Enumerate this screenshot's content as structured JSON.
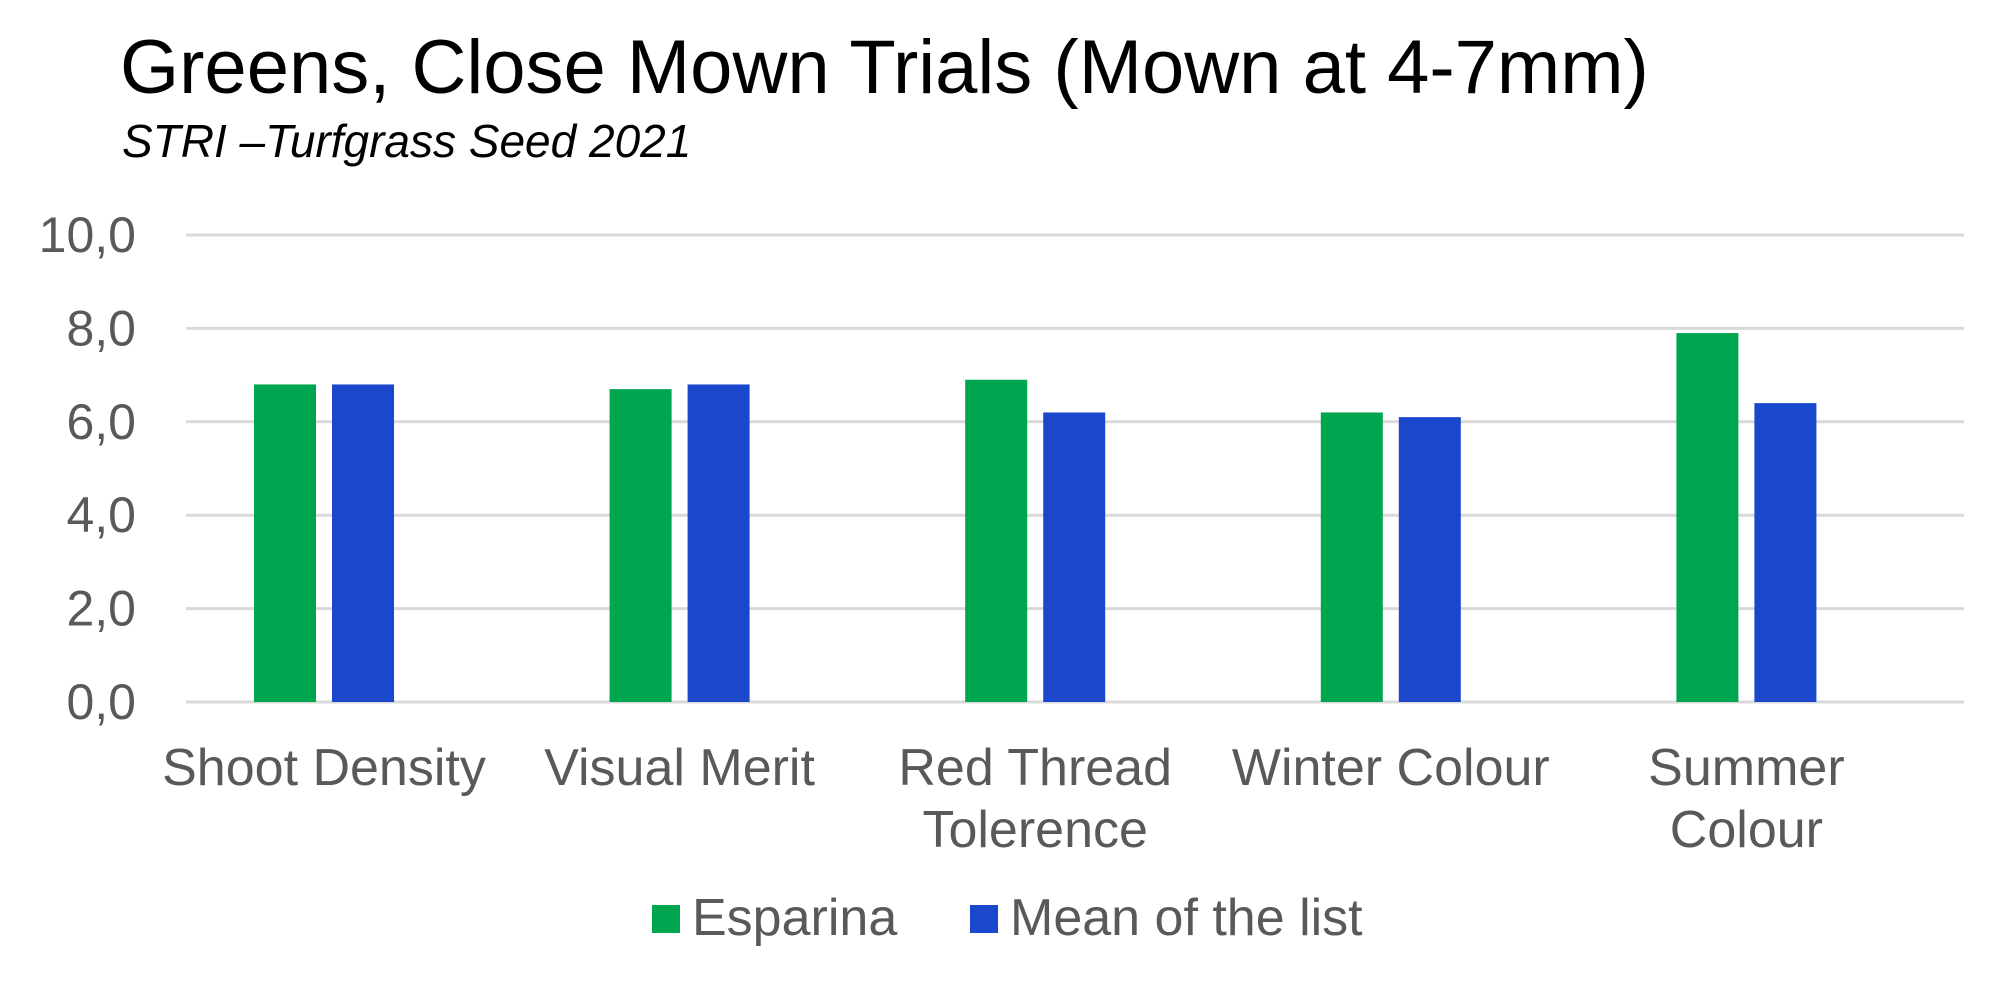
{
  "chart_data": {
    "type": "bar",
    "title": "Greens, Close Mown Trials (Mown at 4-7mm)",
    "subtitle": "STRI –Turfgrass Seed 2021",
    "categories": [
      [
        "Shoot Density"
      ],
      [
        "Visual Merit"
      ],
      [
        "Red Thread",
        "Tolerence"
      ],
      [
        "Winter Colour"
      ],
      [
        "Summer",
        "Colour"
      ]
    ],
    "series": [
      {
        "name": "Esparina",
        "color": "#00A550",
        "values": [
          6.8,
          6.7,
          6.9,
          6.2,
          7.9
        ]
      },
      {
        "name": "Mean of the list",
        "color": "#1A47CC",
        "values": [
          6.8,
          6.8,
          6.2,
          6.1,
          6.4
        ]
      }
    ],
    "ylim": [
      0,
      10
    ],
    "yticks": [
      "0,0",
      "2,0",
      "4,0",
      "6,0",
      "8,0",
      "10,0"
    ],
    "grid": true,
    "legend": "bottom"
  }
}
